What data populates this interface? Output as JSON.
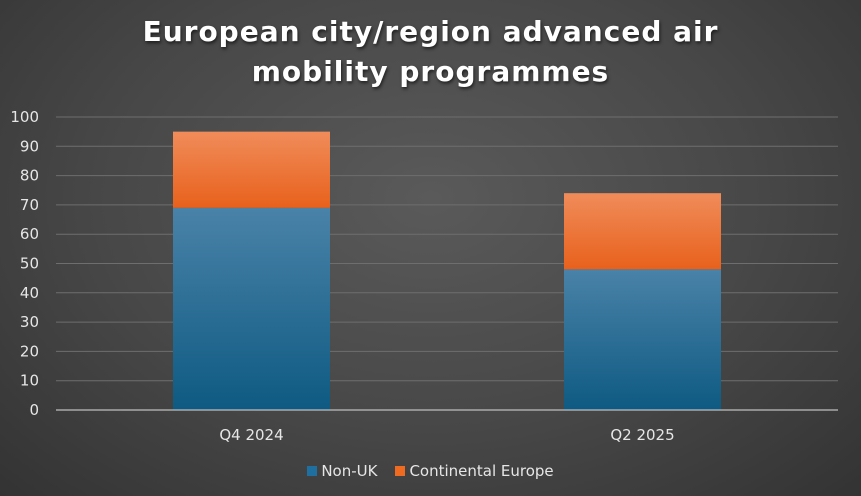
{
  "chart_data": {
    "type": "bar",
    "stacked": true,
    "title_lines": [
      "European city/region advanced air",
      "mobility programmes"
    ],
    "categories": [
      "Q4 2024",
      "Q2 2025"
    ],
    "series": [
      {
        "name": "Non-UK",
        "values": [
          69,
          48
        ],
        "color": "#1f6fa0"
      },
      {
        "name": "Continental Europe",
        "values": [
          26,
          26
        ],
        "color": "#ef6b22"
      }
    ],
    "ylim": [
      0,
      100
    ],
    "yticks": [
      0,
      10,
      20,
      30,
      40,
      50,
      60,
      70,
      80,
      90,
      100
    ],
    "grid": true,
    "legend_position": "bottom"
  }
}
